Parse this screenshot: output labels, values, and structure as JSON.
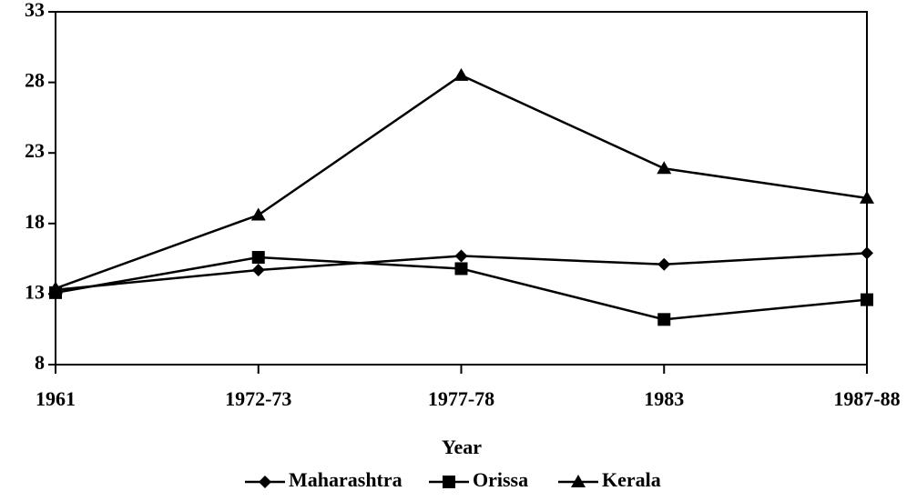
{
  "chart_data": {
    "type": "line",
    "x_label": "Year",
    "categories": [
      "1961",
      "1972-73",
      "1977-78",
      "1983",
      "1987-88"
    ],
    "series": [
      {
        "name": "Maharashtra",
        "color": "#000000",
        "marker": "diamond",
        "values": [
          13.3,
          14.7,
          15.7,
          15.1,
          15.9
        ]
      },
      {
        "name": "Orissa",
        "color": "#000000",
        "marker": "square",
        "values": [
          13.1,
          15.6,
          14.8,
          11.2,
          12.6
        ]
      },
      {
        "name": "Kerala",
        "color": "#000000",
        "marker": "triangle",
        "values": [
          13.4,
          18.6,
          28.5,
          21.9,
          19.8
        ]
      }
    ],
    "ylim": [
      8,
      33
    ],
    "yticks": [
      8,
      13,
      18,
      23,
      28,
      33
    ],
    "legend": "bottom"
  }
}
